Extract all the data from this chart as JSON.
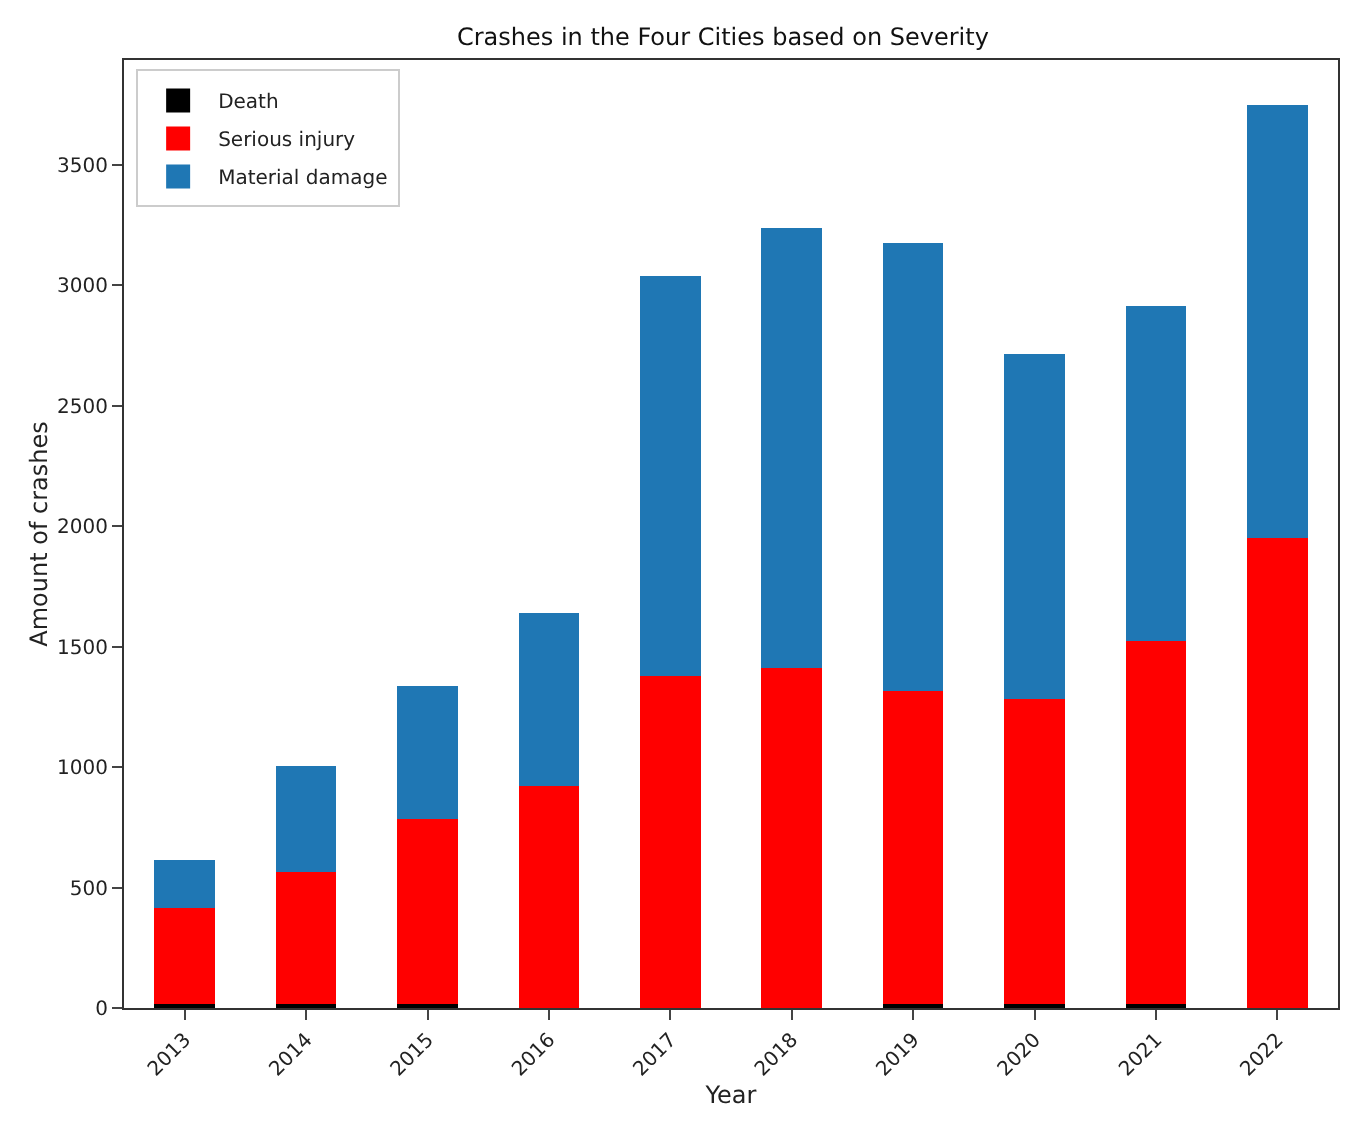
{
  "chart_data": {
    "type": "bar",
    "title": "Crashes in the Four Cities based on Severity",
    "xlabel": "Year",
    "ylabel": "Amount of crashes",
    "categories": [
      "2013",
      "2014",
      "2015",
      "2016",
      "2017",
      "2018",
      "2019",
      "2020",
      "2021",
      "2022"
    ],
    "stacked": true,
    "series": [
      {
        "name": "Death",
        "color": "#000000",
        "values": [
          15,
          15,
          15,
          null,
          null,
          null,
          15,
          15,
          15,
          null
        ]
      },
      {
        "name": "Serious injury",
        "color": "#ff0000",
        "values": [
          400,
          550,
          770,
          920,
          1380,
          1410,
          1300,
          1270,
          1510,
          1950
        ]
      },
      {
        "name": "Material damage",
        "color": "#1f77b4",
        "values": [
          200,
          440,
          550,
          720,
          1660,
          1830,
          1860,
          1430,
          1390,
          1800
        ]
      }
    ],
    "ylim": [
      0,
      3936
    ],
    "yticks": [
      0,
      500,
      1000,
      1500,
      2000,
      2500,
      3000,
      3500
    ],
    "grid": false,
    "legend": "top left"
  }
}
